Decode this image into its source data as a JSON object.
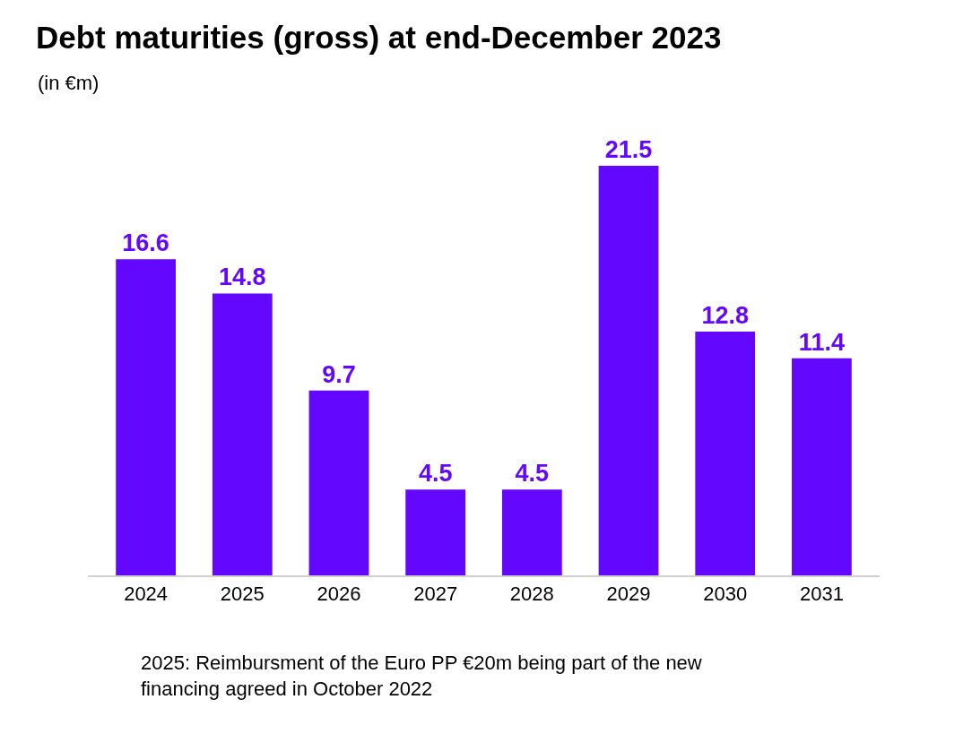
{
  "chart_data": {
    "type": "bar",
    "title": "Debt maturities (gross) at end-December 2023",
    "subtitle": "(in €m)",
    "categories": [
      "2024",
      "2025",
      "2026",
      "2027",
      "2028",
      "2029",
      "2030",
      "2031"
    ],
    "values": [
      16.6,
      14.8,
      9.7,
      4.5,
      4.5,
      21.5,
      12.8,
      11.4
    ],
    "color": "#6407ff",
    "data_labels": true,
    "annotations": [
      "2025: Reimbursment of the Euro PP €20m being part of the new financing agreed in October 2022"
    ]
  }
}
